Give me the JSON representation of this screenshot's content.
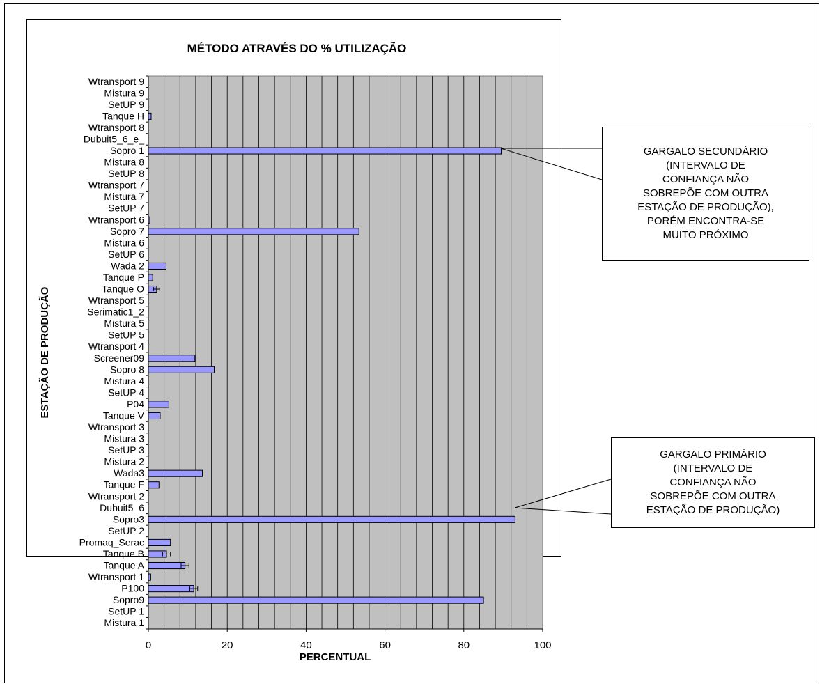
{
  "chart_data": {
    "type": "bar",
    "orientation": "horizontal",
    "title": "MÉTODO ATRAVÉS DO % UTILIZAÇÃO",
    "xlabel": "PERCENTUAL",
    "ylabel": "ESTAÇÃO DE PRODUÇÃO",
    "xlim": [
      0,
      100
    ],
    "x_ticks": [
      0,
      20,
      40,
      60,
      80,
      100
    ],
    "grid": true,
    "plot_background": "#c0c0c0",
    "bar_color": "#9999ff",
    "categories": [
      "Mistura 1",
      "SetUP 1",
      "Sopro9",
      "P100",
      "Wtransport 1",
      "Tanque A",
      "Tanque B",
      "Promaq_Serac",
      "SetUP 2",
      "Sopro3",
      "Dubuit5_6",
      "Wtransport 2",
      "Tanque F",
      "Wada3",
      "Mistura 2",
      "SetUP 3",
      "Mistura 3",
      "Wtransport 3",
      "Tanque V",
      "P04",
      "SetUP 4",
      "Mistura 4",
      "Sopro 8",
      "Screener09",
      "Wtransport 4",
      "SetUP 5",
      "Mistura 5",
      "Serimatic1_2",
      "Wtransport 5",
      "Tanque O",
      "Tanque P",
      "Wada 2",
      "SetUP 6",
      "Mistura 6",
      "Sopro 7",
      "Wtransport 6",
      "SetUP 7",
      "Mistura 7",
      "Wtransport 7",
      "SetUP 8",
      "Mistura 8",
      "Sopro 1",
      "Dubuit5_6_e_",
      "Wtransport 8",
      "Tanque H",
      "SetUP 9",
      "Mistura 9",
      "Wtransport 9"
    ],
    "values": [
      0,
      0,
      85,
      11.5,
      0.6,
      9.3,
      4.6,
      5.6,
      0,
      93,
      0,
      0,
      2.7,
      13.7,
      0,
      0,
      0,
      0,
      3,
      5.2,
      0,
      0,
      16.7,
      11.8,
      0,
      0,
      0,
      0,
      0,
      2.1,
      1.1,
      4.5,
      0,
      0,
      53.4,
      0.3,
      0,
      0,
      0,
      0,
      0,
      89.5,
      0,
      0,
      0.7,
      0,
      0,
      0
    ],
    "error_bars": [
      0,
      0,
      0,
      1,
      0,
      1,
      1,
      0,
      0,
      0,
      0,
      0,
      0,
      0,
      0,
      0,
      0,
      0,
      0,
      0,
      0,
      0,
      0,
      0,
      0,
      0,
      0,
      0,
      0,
      0.8,
      0,
      0,
      0,
      0,
      0,
      0,
      0,
      0,
      0,
      0,
      0,
      0,
      0,
      0,
      0,
      0,
      0,
      0
    ],
    "annotations": [
      {
        "text": "GARGALO SECUNDÁRIO\n(INTERVALO DE\nCONFIANÇA NÃO\nSOBREPÕE COM OUTRA\nESTAÇÃO DE PRODUÇÃO),\nPORÉM ENCONTRA-SE\nMUITO PRÓXIMO",
        "target": "Sopro 1"
      },
      {
        "text": "GARGALO PRIMÁRIO\n(INTERVALO DE\nCONFIANÇA NÃO\nSOBREPÕE COM OUTRA\nESTAÇÃO DE PRODUÇÃO)",
        "target": "Sopro3"
      }
    ]
  }
}
